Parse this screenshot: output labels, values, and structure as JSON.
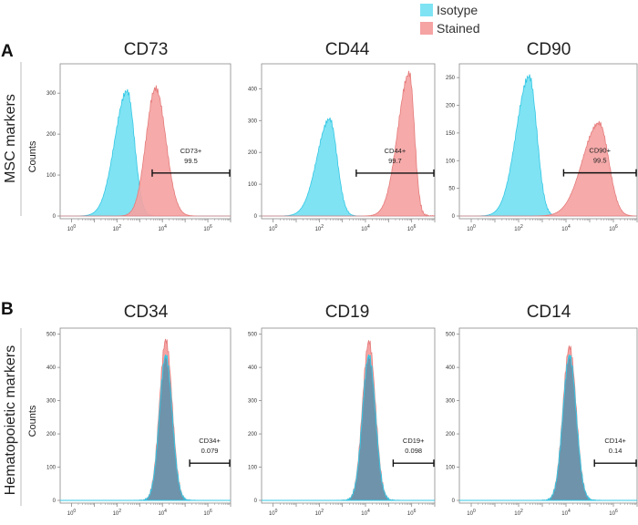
{
  "legend": {
    "items": [
      {
        "label": "Isotype",
        "color": "#7fe3f3"
      },
      {
        "label": "Stained",
        "color": "#f5a3a3"
      }
    ]
  },
  "rows": [
    {
      "letter": "A",
      "label": "MSC markers"
    },
    {
      "letter": "B",
      "label": "Hematopoietic markers"
    }
  ],
  "y_axis_label": "Counts",
  "colors": {
    "isotype_fill": "#7fe3f3",
    "isotype_line": "#35c7e4",
    "stained_fill": "#f5a3a3",
    "stained_line": "#e57b7b",
    "overlap_fill": "#6f93aa",
    "axis": "#8a8a8a",
    "gate": "#111111"
  },
  "chart_data": [
    {
      "type": "histogram",
      "title": "CD73",
      "row": 0,
      "xscale": "log",
      "xlim": [
        0.316,
        10000000.0
      ],
      "ylim": [
        0,
        365
      ],
      "yticks": [
        0,
        100,
        200,
        300
      ],
      "xticks_exp": [
        0,
        2,
        4,
        6
      ],
      "isotype": {
        "center_log": 2.45,
        "peak": 305,
        "sigma_l": 0.55,
        "sigma_r": 0.32
      },
      "stained": {
        "center_log": 3.7,
        "peak": 312,
        "sigma_l": 0.42,
        "sigma_r": 0.45
      },
      "gate": {
        "label": "CD73+",
        "value": "99.5",
        "from_log": 3.55,
        "to_log": 7.0,
        "y": 105
      }
    },
    {
      "type": "histogram",
      "title": "CD44",
      "row": 0,
      "xscale": "log",
      "xlim": [
        0.316,
        10000000.0
      ],
      "ylim": [
        0,
        470
      ],
      "yticks": [
        0,
        100,
        200,
        300,
        400
      ],
      "xticks_exp": [
        0,
        2,
        4,
        6
      ],
      "isotype": {
        "center_log": 2.45,
        "peak": 305,
        "sigma_l": 0.55,
        "sigma_r": 0.32
      },
      "stained": {
        "center_log": 5.9,
        "peak": 448,
        "sigma_l": 0.5,
        "sigma_r": 0.22
      },
      "gate": {
        "label": "CD44+",
        "value": "99.7",
        "from_log": 3.6,
        "to_log": 7.0,
        "y": 135
      }
    },
    {
      "type": "histogram",
      "title": "CD90",
      "row": 0,
      "xscale": "log",
      "xlim": [
        0.316,
        10000000.0
      ],
      "ylim": [
        0,
        270
      ],
      "yticks": [
        0,
        50,
        100,
        150,
        200,
        250
      ],
      "xticks_exp": [
        0,
        2,
        4,
        6
      ],
      "isotype": {
        "center_log": 2.45,
        "peak": 252,
        "sigma_l": 0.55,
        "sigma_r": 0.32
      },
      "stained": {
        "center_log": 5.4,
        "peak": 168,
        "sigma_l": 0.7,
        "sigma_r": 0.4
      },
      "gate": {
        "label": "CD90+",
        "value": "99.5",
        "from_log": 3.9,
        "to_log": 7.0,
        "y": 78
      }
    },
    {
      "type": "histogram",
      "title": "CD34",
      "row": 1,
      "xscale": "log",
      "xlim": [
        0.316,
        10000000.0
      ],
      "ylim": [
        0,
        510
      ],
      "yticks": [
        0,
        100,
        200,
        300,
        400,
        500
      ],
      "xticks_exp": [
        0,
        2,
        4,
        6
      ],
      "isotype": {
        "center_log": 4.15,
        "peak": 435,
        "sigma_l": 0.28,
        "sigma_r": 0.28
      },
      "stained": {
        "center_log": 4.15,
        "peak": 482,
        "sigma_l": 0.28,
        "sigma_r": 0.28
      },
      "gate": {
        "label": "CD34+",
        "value": "0.079",
        "from_log": 5.2,
        "to_log": 7.0,
        "y": 112
      }
    },
    {
      "type": "histogram",
      "title": "CD19",
      "row": 1,
      "xscale": "log",
      "xlim": [
        0.316,
        10000000.0
      ],
      "ylim": [
        0,
        510
      ],
      "yticks": [
        0,
        100,
        200,
        300,
        400,
        500
      ],
      "xticks_exp": [
        0,
        2,
        4,
        6
      ],
      "isotype": {
        "center_log": 4.15,
        "peak": 435,
        "sigma_l": 0.28,
        "sigma_r": 0.28
      },
      "stained": {
        "center_log": 4.15,
        "peak": 478,
        "sigma_l": 0.28,
        "sigma_r": 0.28
      },
      "gate": {
        "label": "CD19+",
        "value": "0.098",
        "from_log": 5.2,
        "to_log": 7.0,
        "y": 112
      }
    },
    {
      "type": "histogram",
      "title": "CD14",
      "row": 1,
      "xscale": "log",
      "xlim": [
        0.316,
        10000000.0
      ],
      "ylim": [
        0,
        510
      ],
      "yticks": [
        0,
        100,
        200,
        300,
        400,
        500
      ],
      "xticks_exp": [
        0,
        2,
        4,
        6
      ],
      "isotype": {
        "center_log": 4.15,
        "peak": 435,
        "sigma_l": 0.28,
        "sigma_r": 0.28
      },
      "stained": {
        "center_log": 4.15,
        "peak": 462,
        "sigma_l": 0.28,
        "sigma_r": 0.28
      },
      "gate": {
        "label": "CD14+",
        "value": "0.14",
        "from_log": 5.2,
        "to_log": 7.0,
        "y": 112
      }
    }
  ]
}
